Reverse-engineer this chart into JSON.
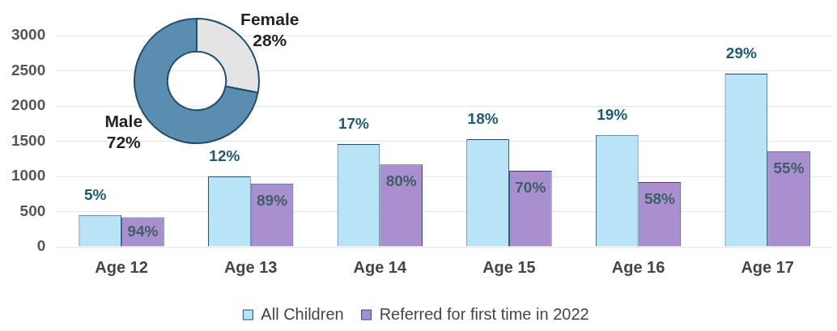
{
  "chart_data": [
    {
      "type": "bar",
      "categories": [
        "Age 12",
        "Age 13",
        "Age 14",
        "Age 15",
        "Age 16",
        "Age 17"
      ],
      "series": [
        {
          "name": "All Children",
          "color": "#b9e3f6",
          "values": [
            450,
            1000,
            1460,
            1530,
            1590,
            2460
          ]
        },
        {
          "name": "Referred for first time in 2022",
          "color": "#a98fcf",
          "values": [
            420,
            900,
            1170,
            1080,
            920,
            1360
          ]
        }
      ],
      "annotations": [
        {
          "text": "5%",
          "x": "Age 12",
          "y": 450
        },
        {
          "text": "12%",
          "x": "Age 13",
          "y": 1000
        },
        {
          "text": "17%",
          "x": "Age 14",
          "y": 1460
        },
        {
          "text": "18%",
          "x": "Age 15",
          "y": 1530
        },
        {
          "text": "19%",
          "x": "Age 16",
          "y": 1590
        },
        {
          "text": "29%",
          "x": "Age 17",
          "y": 2460
        },
        {
          "text": "94%",
          "x": "Age 12",
          "y": 420
        },
        {
          "text": "89%",
          "x": "Age 13",
          "y": 900
        },
        {
          "text": "80%",
          "x": "Age 14",
          "y": 1170
        },
        {
          "text": "70%",
          "x": "Age 15",
          "y": 1080
        },
        {
          "text": "58%",
          "x": "Age 16",
          "y": 920
        },
        {
          "text": "55%",
          "x": "Age 17",
          "y": 1360
        }
      ],
      "ylim": [
        0,
        3000
      ],
      "yticks": [
        0,
        500,
        1000,
        1500,
        2000,
        2500,
        3000
      ],
      "grid": "y",
      "legend": "bottom"
    },
    {
      "type": "donut",
      "categories": [
        "Female",
        "Male"
      ],
      "values": [
        28,
        72
      ],
      "colors": [
        "#e4e4e4",
        "#5a8db0"
      ],
      "value_labels": [
        "28%",
        "72%"
      ]
    }
  ]
}
